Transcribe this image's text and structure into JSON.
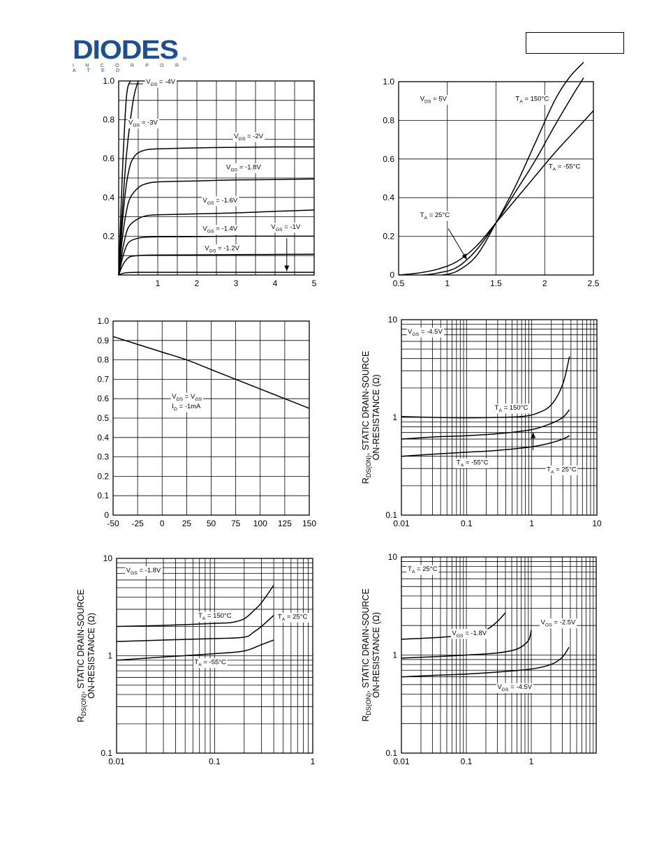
{
  "header": {
    "logo_text": "DIODES",
    "logo_subtext": "I N C O R P O R A T E D",
    "logo_registered": "®",
    "brand_color": "#1b4e9b",
    "part_number": ""
  },
  "chart_data": [
    {
      "id": "c1",
      "type": "line",
      "xscale": "linear",
      "yscale": "linear",
      "xlim": [
        0,
        5
      ],
      "ylim": [
        0,
        1.0
      ],
      "xticks": [
        1,
        2,
        3,
        4,
        5
      ],
      "yticks": [
        0.2,
        0.4,
        0.6,
        0.8,
        1.0
      ],
      "xtick_labels": [
        "1",
        "2",
        "3",
        "4",
        "5"
      ],
      "ytick_labels": [
        "0.2",
        "0.4",
        "0.6",
        "0.8",
        "1.0"
      ],
      "grid": true,
      "vgrid": [
        0.5,
        1,
        1.5,
        2,
        2.5,
        3,
        3.5,
        4,
        4.5
      ],
      "hgrid": [
        0.1,
        0.2,
        0.3,
        0.4,
        0.5,
        0.6,
        0.7,
        0.8,
        0.9
      ],
      "series": [
        {
          "x": [
            0,
            0.1,
            0.2,
            0.3
          ],
          "y": [
            0,
            0.55,
            0.92,
            1.0
          ]
        },
        {
          "x": [
            0,
            0.1,
            0.2,
            0.3,
            0.4,
            0.5
          ],
          "y": [
            0,
            0.35,
            0.62,
            0.8,
            0.93,
            1.0
          ]
        },
        {
          "x": [
            0,
            0.1,
            0.2,
            0.3,
            0.4,
            0.5,
            0.7,
            1.0,
            2.0,
            3.0,
            4.0,
            5.0
          ],
          "y": [
            0,
            0.28,
            0.47,
            0.57,
            0.61,
            0.63,
            0.645,
            0.65,
            0.655,
            0.658,
            0.66,
            0.66
          ]
        },
        {
          "x": [
            0,
            0.1,
            0.2,
            0.3,
            0.5,
            0.7,
            1.0,
            2.0,
            3.0,
            4.0,
            5.0
          ],
          "y": [
            0,
            0.2,
            0.33,
            0.4,
            0.45,
            0.47,
            0.48,
            0.485,
            0.49,
            0.492,
            0.495
          ]
        },
        {
          "x": [
            0,
            0.1,
            0.2,
            0.3,
            0.5,
            0.7,
            1.0,
            2.0,
            3.0,
            4.0,
            5.0
          ],
          "y": [
            0,
            0.13,
            0.22,
            0.26,
            0.29,
            0.305,
            0.31,
            0.315,
            0.32,
            0.328,
            0.335
          ]
        },
        {
          "x": [
            0,
            0.1,
            0.2,
            0.3,
            0.5,
            0.7,
            1.0,
            2.0,
            3.0,
            4.0,
            5.0
          ],
          "y": [
            0,
            0.09,
            0.15,
            0.175,
            0.19,
            0.195,
            0.197,
            0.198,
            0.2,
            0.2,
            0.2
          ]
        },
        {
          "x": [
            0,
            0.1,
            0.2,
            0.3,
            0.5,
            0.7,
            1.0,
            2.0,
            3.0,
            4.0,
            5.0
          ],
          "y": [
            0,
            0.05,
            0.08,
            0.095,
            0.1,
            0.102,
            0.103,
            0.104,
            0.105,
            0.106,
            0.107
          ]
        },
        {
          "x": [
            0,
            0.1,
            0.2,
            0.3,
            0.5,
            1.0,
            2.0,
            3.0,
            4.0,
            5.0
          ],
          "y": [
            0,
            0.008,
            0.012,
            0.013,
            0.014,
            0.014,
            0.014,
            0.014,
            0.014,
            0.014
          ]
        }
      ],
      "annotations": [
        {
          "text": "V",
          "sub": "GS",
          "tail": " = -4V",
          "x": 0.7,
          "y": 0.985
        },
        {
          "text": "V",
          "sub": "GS",
          "tail": " = -3V",
          "x": 0.25,
          "y": 0.775
        },
        {
          "text": "V",
          "sub": "GS",
          "tail": " = -2V",
          "x": 2.95,
          "y": 0.705
        },
        {
          "text": "V",
          "sub": "GS",
          "tail": " = -1.8V",
          "x": 2.75,
          "y": 0.545
        },
        {
          "text": "V",
          "sub": "GS",
          "tail": " = -1.6V",
          "x": 2.15,
          "y": 0.375
        },
        {
          "text": "V",
          "sub": "GS",
          "tail": " = -1.4V",
          "x": 2.15,
          "y": 0.228
        },
        {
          "text": "V",
          "sub": "GS",
          "tail": " = -1.2V",
          "x": 2.2,
          "y": 0.128
        },
        {
          "text": "V",
          "sub": "GS",
          "tail": " = -1V",
          "x": 3.9,
          "y": 0.238
        }
      ],
      "lines": [
        {
          "x1": 0.25,
          "y1": 0.985,
          "x2": 0.62,
          "y2": 0.985
        }
      ],
      "arrows": [
        {
          "x1": 4.3,
          "y1": 0.19,
          "x2": 4.3,
          "y2": 0.02
        }
      ]
    },
    {
      "id": "c2",
      "type": "line",
      "xscale": "linear",
      "yscale": "linear",
      "xlim": [
        0.5,
        2.5
      ],
      "ylim": [
        0,
        1.0
      ],
      "xticks": [
        0.5,
        1,
        1.5,
        2,
        2.5
      ],
      "yticks": [
        0,
        0.2,
        0.4,
        0.6,
        0.8,
        1.0
      ],
      "xtick_labels": [
        "0.5",
        "1",
        "1.5",
        "2",
        "2.5"
      ],
      "ytick_labels": [
        "0",
        "0.2",
        "0.4",
        "0.6",
        "0.8",
        "1.0"
      ],
      "grid": true,
      "vgrid": [
        1,
        1.5,
        2
      ],
      "hgrid": [
        0.2,
        0.4,
        0.6,
        0.8
      ],
      "series": [
        {
          "x": [
            0.5,
            0.7,
            0.9,
            1.1,
            1.3,
            1.5,
            1.7,
            1.9,
            2.1,
            2.3,
            2.5
          ],
          "y": [
            0,
            0.01,
            0.03,
            0.07,
            0.15,
            0.27,
            0.39,
            0.51,
            0.63,
            0.74,
            0.85
          ]
        },
        {
          "x": [
            0.75,
            0.9,
            1.1,
            1.3,
            1.5,
            1.7,
            1.9,
            2.1,
            2.3,
            2.4
          ],
          "y": [
            0,
            0.01,
            0.04,
            0.13,
            0.27,
            0.43,
            0.59,
            0.77,
            0.94,
            1.02
          ]
        },
        {
          "x": [
            0.95,
            1.1,
            1.3,
            1.5,
            1.7,
            1.9,
            2.1,
            2.25,
            2.4
          ],
          "y": [
            0,
            0.02,
            0.1,
            0.27,
            0.46,
            0.68,
            0.9,
            1.02,
            1.1
          ]
        }
      ],
      "annotations": [
        {
          "text": "V",
          "sub": "DS",
          "tail": " = 5V",
          "x": 0.72,
          "y": 0.9
        },
        {
          "text": "T",
          "sub": "A",
          "tail": " = 150°C",
          "x": 1.7,
          "y": 0.9
        },
        {
          "text": "T",
          "sub": "A",
          "tail": " = -55°C",
          "x": 2.04,
          "y": 0.55
        },
        {
          "text": "T",
          "sub": "A",
          "tail": " = 25°C",
          "x": 0.72,
          "y": 0.3
        }
      ],
      "lines": [],
      "arrows": [
        {
          "x1": 1.01,
          "y1": 0.24,
          "x2": 1.2,
          "y2": 0.08
        }
      ]
    },
    {
      "id": "c3",
      "type": "line",
      "xscale": "linear",
      "yscale": "linear",
      "xlim": [
        -50,
        150
      ],
      "ylim": [
        0,
        1.0
      ],
      "xticks": [
        -50,
        -25,
        0,
        25,
        50,
        75,
        100,
        125,
        150
      ],
      "yticks": [
        0,
        0.1,
        0.2,
        0.3,
        0.4,
        0.5,
        0.6,
        0.7,
        0.8,
        0.9,
        1.0
      ],
      "xtick_labels": [
        "-50",
        "-25",
        "0",
        "25",
        "50",
        "75",
        "100",
        "125",
        "150"
      ],
      "ytick_labels": [
        "0",
        "0.1",
        "0.2",
        "0.3",
        "0.4",
        "0.5",
        "0.6",
        "0.7",
        "0.8",
        "0.9",
        "1.0"
      ],
      "grid": true,
      "vgrid": [
        -25,
        0,
        25,
        50,
        75,
        100,
        125
      ],
      "hgrid": [
        0.1,
        0.2,
        0.3,
        0.4,
        0.5,
        0.6,
        0.7,
        0.8,
        0.9
      ],
      "series": [
        {
          "x": [
            -50,
            -25,
            0,
            25,
            50,
            75,
            100,
            125,
            150
          ],
          "y": [
            0.92,
            0.88,
            0.84,
            0.8,
            0.75,
            0.7,
            0.65,
            0.6,
            0.55
          ]
        }
      ],
      "annotations": [
        {
          "text": "V",
          "sub": "DS",
          "tail": " = V",
          "sub2": "GS",
          "x": 10,
          "y": 0.6
        },
        {
          "text": "I",
          "sub": "D",
          "tail": " = -1mA",
          "x": 10,
          "y": 0.55
        }
      ],
      "lines": [],
      "arrows": []
    },
    {
      "id": "c4",
      "type": "line",
      "xscale": "log",
      "yscale": "log",
      "xlim": [
        0.01,
        10
      ],
      "ylim": [
        0.1,
        10
      ],
      "xticks": [
        0.01,
        0.1,
        1,
        10
      ],
      "yticks": [
        0.1,
        1,
        10
      ],
      "xtick_labels": [
        "0.01",
        "0.1",
        "1",
        "10"
      ],
      "ytick_labels": [
        "0.1",
        "1",
        "10"
      ],
      "grid": true,
      "ylabel": "R",
      "ylabel_sub": "DS(ON)",
      "ylabel_tail": ", STATIC DRAIN-SOURCE",
      "ylabel_line2": "ON-RESISTANCE (Ω)",
      "series": [
        {
          "x": [
            0.01,
            0.03,
            0.1,
            0.3,
            0.7,
            1.2,
            2.0,
            3.0,
            3.8
          ],
          "y": [
            1.02,
            1.0,
            0.99,
            1.0,
            1.02,
            1.1,
            1.35,
            2.2,
            4.2
          ]
        },
        {
          "x": [
            0.01,
            0.03,
            0.1,
            0.3,
            1.0,
            2.0,
            3.0,
            3.8
          ],
          "y": [
            0.6,
            0.63,
            0.65,
            0.68,
            0.75,
            0.87,
            1.0,
            1.2
          ]
        },
        {
          "x": [
            0.01,
            0.03,
            0.1,
            0.3,
            1.0,
            2.0,
            3.0,
            3.8
          ],
          "y": [
            0.4,
            0.42,
            0.44,
            0.46,
            0.5,
            0.55,
            0.6,
            0.65
          ]
        }
      ],
      "annotations": [
        {
          "text": "V",
          "sub": "GS",
          "tail": " = -4.5V",
          "x": 0.0125,
          "y": 7.2
        },
        {
          "text": "T",
          "sub": "A",
          "tail": " = 150°C",
          "x": 0.27,
          "y": 1.2
        },
        {
          "text": "T",
          "sub": "A",
          "tail": " = -55°C",
          "x": 0.07,
          "y": 0.33
        },
        {
          "text": "T",
          "sub": "A",
          "tail": " = 25°C",
          "x": 1.7,
          "y": 0.28
        }
      ],
      "lines": [],
      "arrows": [
        {
          "x1": 1.05,
          "y1": 0.46,
          "x2": 1.05,
          "y2": 0.7
        }
      ]
    },
    {
      "id": "c5",
      "type": "line",
      "xscale": "log",
      "yscale": "log",
      "xlim": [
        0.01,
        1
      ],
      "ylim": [
        0.1,
        10
      ],
      "xticks": [
        0.01,
        0.1,
        1
      ],
      "yticks": [
        0.1,
        1,
        10
      ],
      "xtick_labels": [
        "0.01",
        "0.1",
        "1"
      ],
      "ytick_labels": [
        "0.1",
        "1",
        "10"
      ],
      "grid": true,
      "ylabel": "R",
      "ylabel_sub": "DS(ON)",
      "ylabel_tail": ", STATIC DRAIN-SOURCE",
      "ylabel_line2": "ON-RESISTANCE (Ω)",
      "series": [
        {
          "x": [
            0.01,
            0.03,
            0.1,
            0.15,
            0.2,
            0.25,
            0.3,
            0.4
          ],
          "y": [
            2.0,
            2.05,
            2.15,
            2.2,
            2.4,
            2.9,
            3.5,
            5.3
          ]
        },
        {
          "x": [
            0.01,
            0.03,
            0.1,
            0.2,
            0.25,
            0.3,
            0.4
          ],
          "y": [
            1.4,
            1.45,
            1.5,
            1.55,
            1.75,
            2.0,
            2.6
          ]
        },
        {
          "x": [
            0.01,
            0.03,
            0.1,
            0.2,
            0.3,
            0.4
          ],
          "y": [
            0.9,
            0.97,
            1.05,
            1.12,
            1.3,
            1.45
          ]
        }
      ],
      "annotations": [
        {
          "text": "V",
          "sub": "GS",
          "tail": " = -1.8V",
          "x": 0.0125,
          "y": 7.2
        },
        {
          "text": "T",
          "sub": "A",
          "tail": " = 150°C",
          "x": 0.068,
          "y": 2.45
        },
        {
          "text": "T",
          "sub": "A",
          "tail": " = 25°C",
          "x": 0.44,
          "y": 2.4
        },
        {
          "text": "T",
          "sub": "A",
          "tail": " = -55°C",
          "x": 0.062,
          "y": 0.82
        }
      ],
      "lines": [],
      "arrows": []
    },
    {
      "id": "c6",
      "type": "line",
      "xscale": "log",
      "yscale": "log",
      "xlim": [
        0.01,
        10
      ],
      "ylim": [
        0.1,
        10
      ],
      "xticks": [
        0.01,
        0.1,
        1
      ],
      "yticks": [
        0.1,
        1,
        10
      ],
      "xtick_labels": [
        "0.01",
        "0.1",
        "1"
      ],
      "ytick_labels": [
        "0.1",
        "1",
        "10"
      ],
      "grid": true,
      "ylabel": "R",
      "ylabel_sub": "DS(ON)",
      "ylabel_tail": ", STATIC DRAIN-SOURCE",
      "ylabel_line2": "ON-RESISTANCE (Ω)",
      "series": [
        {
          "x": [
            0.01,
            0.03,
            0.1,
            0.2,
            0.3,
            0.4
          ],
          "y": [
            1.45,
            1.5,
            1.6,
            1.8,
            2.2,
            2.7
          ]
        },
        {
          "x": [
            0.01,
            0.03,
            0.1,
            0.3,
            0.6,
            0.9,
            1.0
          ],
          "y": [
            0.93,
            0.96,
            1.0,
            1.05,
            1.15,
            1.4,
            1.8
          ]
        },
        {
          "x": [
            0.01,
            0.03,
            0.1,
            0.3,
            1.0,
            2.0,
            3.0,
            3.8
          ],
          "y": [
            0.6,
            0.62,
            0.64,
            0.67,
            0.72,
            0.8,
            0.95,
            1.2
          ]
        }
      ],
      "annotations": [
        {
          "text": "T",
          "sub": "A",
          "tail": " = 25°C",
          "x": 0.0125,
          "y": 7.2
        },
        {
          "text": "V",
          "sub": "GS",
          "tail": " = -1.8V",
          "x": 0.06,
          "y": 1.6
        },
        {
          "text": "V",
          "sub": "GS",
          "tail": " = -2.5V",
          "x": 1.4,
          "y": 2.05
        },
        {
          "text": "V",
          "sub": "GS",
          "tail": " = -4.5V",
          "x": 0.3,
          "y": 0.45
        }
      ],
      "lines": [],
      "arrows": []
    }
  ]
}
